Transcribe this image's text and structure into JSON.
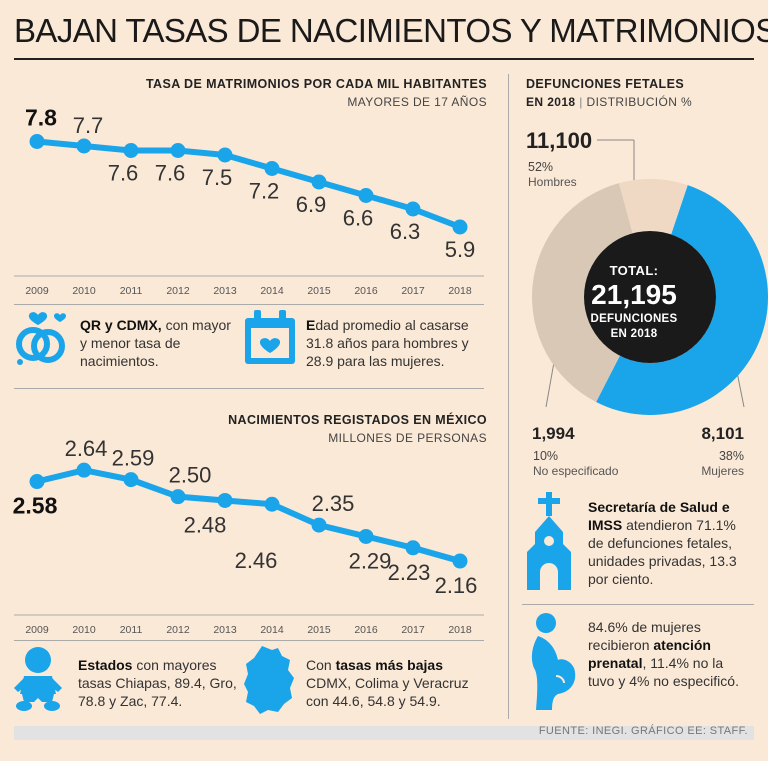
{
  "title": "BAJAN TASAS DE NACIMIENTOS Y MATRIMONIOS",
  "colors": {
    "accent": "#1aa4ea",
    "beige": "#d9c8b6",
    "dark": "#1a1a1a",
    "background": "#fbe9d7"
  },
  "chart_data": [
    {
      "type": "line",
      "title": "TASA DE MATRIMONIOS POR CADA MIL HABITANTES",
      "subtitle": "MAYORES DE 17 AÑOS",
      "x": [
        "2009",
        "2010",
        "2011",
        "2012",
        "2013",
        "2014",
        "2015",
        "2016",
        "2017",
        "2018"
      ],
      "values": [
        7.8,
        7.7,
        7.6,
        7.6,
        7.5,
        7.2,
        6.9,
        6.6,
        6.3,
        5.9
      ],
      "labels": [
        "7.8",
        "7.7",
        "7.6",
        "7.6",
        "7.5",
        "7.2",
        "6.9",
        "6.6",
        "6.3",
        "5.9"
      ],
      "ylim": [
        5.5,
        8.1
      ],
      "grid": false
    },
    {
      "type": "line",
      "title": "NACIMIENTOS REGISTADOS EN MÉXICO",
      "subtitle": "MILLONES DE PERSONAS",
      "x": [
        "2009",
        "2010",
        "2011",
        "2012",
        "2013",
        "2014",
        "2015",
        "2016",
        "2017",
        "2018"
      ],
      "values": [
        2.58,
        2.64,
        2.59,
        2.5,
        2.48,
        2.46,
        2.35,
        2.29,
        2.23,
        2.16
      ],
      "labels": [
        "2.58",
        "2.64",
        "2.59",
        "2.50",
        "2.48",
        "2.46",
        "2.35",
        "2.29",
        "2.23",
        "2.16"
      ],
      "ylim": [
        2.06,
        2.72
      ],
      "grid": false
    },
    {
      "type": "pie",
      "title": "DEFUNCIONES FETALES",
      "subtitle_bold": "EN 2018",
      "subtitle": "DISTRIBUCIÓN %",
      "center": {
        "line1": "TOTAL:",
        "value": "21,195",
        "line2": "DEFUNCIONES",
        "line3": "EN 2018"
      },
      "slices": [
        {
          "label": "Hombres",
          "value": 11100,
          "value_text": "11,100",
          "percent": 52,
          "percent_text": "52%",
          "color": "#1aa4ea"
        },
        {
          "label": "Mujeres",
          "value": 8101,
          "value_text": "8,101",
          "percent": 38,
          "percent_text": "38%",
          "color": "#d9c8b6"
        },
        {
          "label": "No especificado",
          "value": 1994,
          "value_text": "1,994",
          "percent": 10,
          "percent_text": "10%",
          "color": "#efd9c4"
        }
      ]
    }
  ],
  "facts": {
    "qr": {
      "bold": "QR y CDMX,",
      "rest": " con mayor y menor tasa de nacimientos."
    },
    "edad": {
      "bold": "E",
      "rest": "dad promedio al casarse",
      "line2": "31.8 años para hombres y 28.9 para las mujeres."
    },
    "estados": {
      "bold": "Estados",
      "rest": " con mayores tasas Chiapas, 89.4, Gro, 78.8 y Zac, 77.4."
    },
    "tasas": {
      "pre": "Con ",
      "bold": "tasas más bajas",
      "rest": " CDMX, Colima y Veracruz con 44.6, 54.8 y 54.9."
    },
    "salud": {
      "bold": "Secretaría de Salud e IMSS",
      "rest": " atendieron 71.1% de defunciones fetales, unidades privadas, 13.3 por ciento."
    },
    "prenatal": {
      "pre": "84.6% de mujeres recibieron ",
      "bold": "atención prenatal",
      "rest": ", 11.4% no la tuvo y 4% no especificó."
    }
  },
  "icons": [
    "rings-icon",
    "calendar-heart-icon",
    "baby-icon",
    "mexico-city-map-icon",
    "church-icon",
    "pregnant-woman-icon"
  ],
  "footer": "FUENTE: INEGI. GRÁFICO EE: STAFF."
}
